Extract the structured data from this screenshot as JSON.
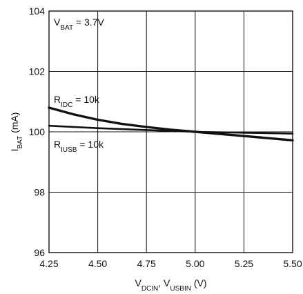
{
  "chart_data": {
    "type": "line",
    "xlabel": {
      "main": "V",
      "sub1": "DCIN",
      "mid": ", V",
      "sub2": "USBIN",
      "tail": " (V)"
    },
    "ylabel": {
      "main": "I",
      "sub": "BAT",
      "tail": " (mA)"
    },
    "xlim": [
      4.25,
      5.5
    ],
    "ylim": [
      96,
      104
    ],
    "x_ticks": [
      4.25,
      4.5,
      4.75,
      5.0,
      5.25,
      5.5
    ],
    "x_tick_labels": [
      "4.25",
      "4.50",
      "4.75",
      "5.00",
      "5.25",
      "5.50"
    ],
    "y_ticks": [
      96,
      98,
      100,
      102,
      104
    ],
    "y_tick_labels": [
      "96",
      "98",
      "100",
      "102",
      "104"
    ],
    "grid": true,
    "annotations": [
      {
        "id": "vbat",
        "main": "V",
        "sub": "BAT",
        "tail": " = 3.7V"
      },
      {
        "id": "ridc",
        "main": "R",
        "sub": "IDC",
        "tail": " = 10k"
      },
      {
        "id": "riusb",
        "main": "R",
        "sub": "IUSB",
        "tail": " = 10k"
      }
    ],
    "series": [
      {
        "x": [
          4.25,
          4.375,
          4.5,
          4.625,
          4.75,
          4.875,
          5.0,
          5.125,
          5.25,
          5.375,
          5.5
        ],
        "values": [
          100.8,
          100.58,
          100.4,
          100.26,
          100.16,
          100.07,
          100.0,
          99.93,
          99.86,
          99.79,
          99.72
        ]
      },
      {
        "x": [
          4.25,
          4.5,
          4.75,
          5.0,
          5.25,
          5.5
        ],
        "values": [
          100.2,
          100.12,
          100.06,
          100.0,
          99.97,
          99.94
        ]
      }
    ]
  }
}
